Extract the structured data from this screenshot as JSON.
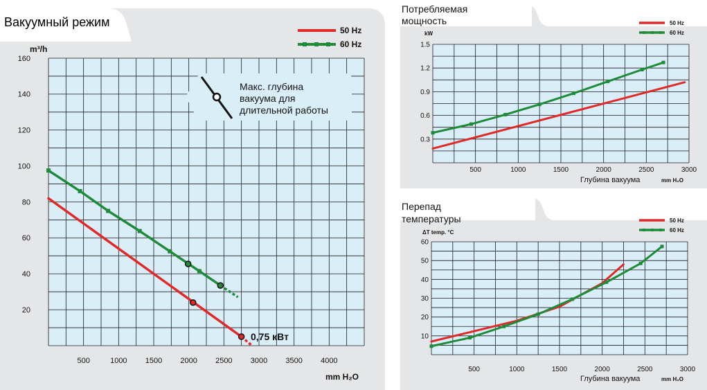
{
  "colors": {
    "red": "#e02a2a",
    "green": "#1f8a3a",
    "plot_bg": "#daeef8",
    "panel_bg": "#e4e6e8",
    "grid": "#1b1b1b"
  },
  "chart_data": [
    {
      "type": "line",
      "title": "Вакуумный режим",
      "xlabel": "mm H₂O",
      "ylabel": "m³/h",
      "xlim": [
        0,
        4500
      ],
      "ylim": [
        0,
        160
      ],
      "x_ticks": [
        500,
        1000,
        1500,
        2000,
        2500,
        3000,
        3500,
        4000
      ],
      "x_tick_labels": [
        "500",
        "1000",
        "1500",
        "2000",
        "2500",
        "3000",
        "3500",
        "4000"
      ],
      "y_ticks": [
        20,
        40,
        60,
        80,
        100,
        120,
        140,
        160
      ],
      "y_tick_labels": [
        "20",
        "40",
        "60",
        "80",
        "100",
        "120",
        "140",
        "160"
      ],
      "series": [
        {
          "name": "50 Hz",
          "color": "#e02a2a",
          "markers": false,
          "x": [
            0,
            2750
          ],
          "y": [
            82,
            5
          ],
          "dashed_x": [
            2750,
            2900
          ],
          "dashed_y": [
            5,
            0
          ],
          "circle_points": [
            {
              "x": 2060,
              "y": 24
            },
            {
              "x": 2750,
              "y": 5
            }
          ]
        },
        {
          "name": "60 Hz",
          "color": "#1f8a3a",
          "markers": true,
          "x": [
            0,
            450,
            850,
            1300,
            1730,
            2150,
            2450
          ],
          "y": [
            97.5,
            86,
            75,
            63.8,
            52.5,
            41.5,
            33.5
          ],
          "dashed_x": [
            2450,
            2700
          ],
          "dashed_y": [
            33.5,
            27
          ],
          "circle_points": [
            {
              "x": 1990,
              "y": 45.5
            },
            {
              "x": 2450,
              "y": 33.5
            }
          ]
        }
      ],
      "legend": [
        "50 Hz",
        "60 Hz"
      ],
      "legend_position": "top-right",
      "annotation_power": "0,75 кВт",
      "callout_lines": [
        "Макс. глубина",
        "вакуума для",
        "длительной работы"
      ]
    },
    {
      "type": "line",
      "title_lines": [
        "Потребляемая",
        "мощность"
      ],
      "ylabel": "kW",
      "xlabel": "Глубина вакуума",
      "xunit": "mm H₂O",
      "xlim": [
        0,
        3000
      ],
      "ylim": [
        0,
        1.5
      ],
      "x_ticks": [
        500,
        1000,
        1500,
        2000,
        2500,
        3000
      ],
      "x_tick_labels": [
        "500",
        "1000",
        "1500",
        "2000",
        "2500",
        "3000"
      ],
      "y_ticks": [
        0.3,
        0.6,
        0.9,
        1.2,
        1.5
      ],
      "y_tick_labels": [
        "0.3",
        "0.6",
        "0.9",
        "1.2",
        "1.5"
      ],
      "series": [
        {
          "name": "50 Hz",
          "color": "#e02a2a",
          "markers": false,
          "x": [
            0,
            2950
          ],
          "y": [
            0.18,
            1.02
          ]
        },
        {
          "name": "60 Hz",
          "color": "#1f8a3a",
          "markers": true,
          "x": [
            0,
            450,
            850,
            1250,
            1650,
            2050,
            2450,
            2700
          ],
          "y": [
            0.38,
            0.49,
            0.61,
            0.74,
            0.88,
            1.03,
            1.18,
            1.27
          ]
        }
      ],
      "legend": [
        "50 Hz",
        "60 Hz"
      ],
      "legend_position": "top-right"
    },
    {
      "type": "line",
      "title_lines": [
        "Перепад",
        "температуры"
      ],
      "ylabel": "ΔT  temp. °C",
      "xlabel": "Глубина вакуума",
      "xunit": "mm H₂O",
      "xlim": [
        0,
        3000
      ],
      "ylim": [
        0,
        60
      ],
      "x_ticks": [
        500,
        1000,
        1500,
        2000,
        2500,
        3000
      ],
      "x_tick_labels": [
        "500",
        "1000",
        "1500",
        "2000",
        "2500",
        "3000"
      ],
      "y_ticks": [
        10,
        20,
        30,
        40,
        50,
        60
      ],
      "y_tick_labels": [
        "10",
        "20",
        "30",
        "40",
        "50",
        "60"
      ],
      "series": [
        {
          "name": "50 Hz",
          "color": "#e02a2a",
          "markers": false,
          "x": [
            0,
            500,
            1000,
            1500,
            2000,
            2250
          ],
          "y": [
            7,
            12.5,
            18,
            25.5,
            38,
            48
          ]
        },
        {
          "name": "60 Hz",
          "color": "#1f8a3a",
          "markers": true,
          "x": [
            0,
            450,
            850,
            1250,
            1650,
            2050,
            2450,
            2700
          ],
          "y": [
            4.5,
            9,
            15,
            21.5,
            29.5,
            38.5,
            48.5,
            57.5
          ]
        }
      ],
      "legend": [
        "50 Hz",
        "60 Hz"
      ],
      "legend_position": "top-right"
    }
  ]
}
